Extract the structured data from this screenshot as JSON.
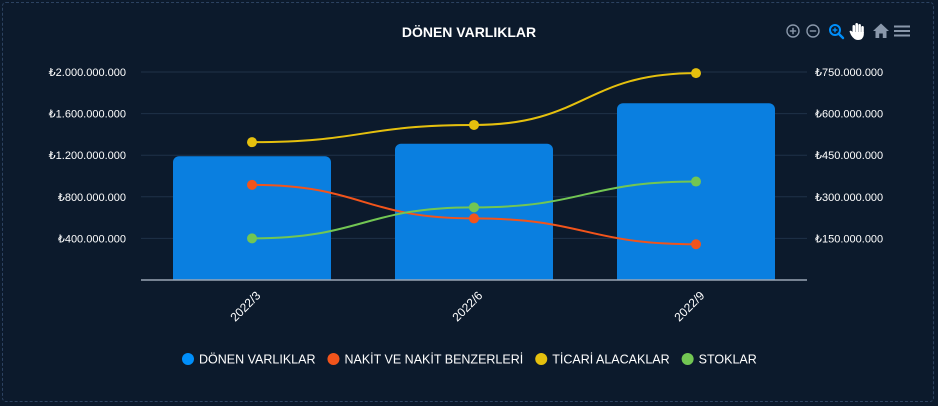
{
  "toolbar": {
    "icons": [
      "zoom-in-icon",
      "zoom-out-icon",
      "selection-zoom-icon",
      "pan-hand-icon",
      "home-reset-icon",
      "menu-icon"
    ],
    "active_color": "#008ffb",
    "inactive_color": "#8a98ab"
  },
  "chart_data": {
    "type": "bar",
    "title": "DÖNEN VARLIKLAR",
    "categories": [
      "2022/3",
      "2022/6",
      "2022/9"
    ],
    "left_axis": {
      "min": 0,
      "max": 2000000000,
      "ticks": [
        400000000,
        800000000,
        1200000000,
        1600000000,
        2000000000
      ],
      "tick_labels": [
        "₺400.000.000",
        "₺800.000.000",
        "₺1.200.000.000",
        "₺1.600.000.000",
        "₺2.000.000.000"
      ]
    },
    "right_axis": {
      "min": 0,
      "max": 750000000,
      "ticks": [
        150000000,
        300000000,
        450000000,
        600000000,
        750000000
      ],
      "tick_labels": [
        "₺150.000.000",
        "₺300.000.000",
        "₺450.000.000",
        "₺600.000.000",
        "₺750.000.000"
      ]
    },
    "grid": true,
    "legend_position": "bottom",
    "series": [
      {
        "name": "DÖNEN VARLIKLAR",
        "type": "bar",
        "axis": "left",
        "color": "#0a7fe0",
        "legend_color": "#008ffb",
        "values": [
          1190000000,
          1310000000,
          1700000000
        ]
      },
      {
        "name": "NAKİT VE NAKİT BENZERLERİ",
        "type": "line",
        "axis": "right",
        "color": "#f2541b",
        "values": [
          343000000,
          222000000,
          129000000
        ]
      },
      {
        "name": "TİCARİ ALACAKLAR",
        "type": "line",
        "axis": "right",
        "color": "#e5c00e",
        "values": [
          497000000,
          559000000,
          746000000
        ]
      },
      {
        "name": "STOKLAR",
        "type": "line",
        "axis": "right",
        "color": "#72c653",
        "values": [
          150000000,
          262000000,
          355000000
        ]
      }
    ]
  }
}
